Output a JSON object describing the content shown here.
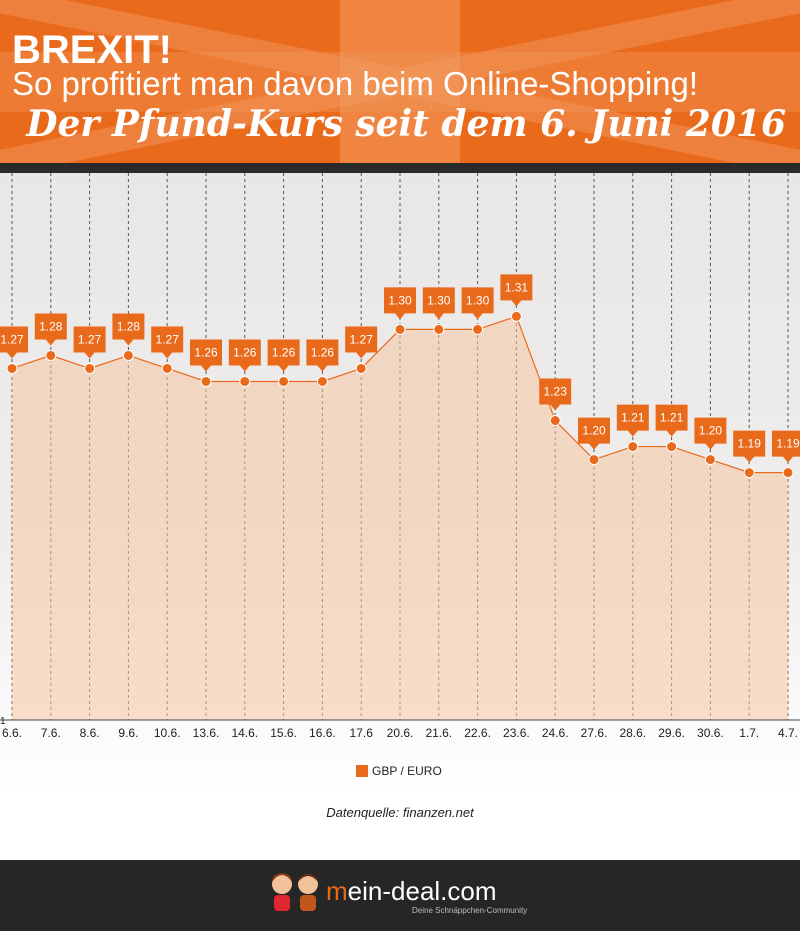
{
  "header": {
    "title": "BREXIT!",
    "subtitle": "So profitiert man davon beim Online-Shopping!",
    "tagline": "Der Pfund-Kurs seit dem 6. Juni 2016"
  },
  "chart_data": {
    "type": "area",
    "categories": [
      "6.6.",
      "7.6.",
      "8.6.",
      "9.6.",
      "10.6.",
      "13.6.",
      "14.6.",
      "15.6.",
      "16.6.",
      "17.6",
      "20.6.",
      "21.6.",
      "22.6.",
      "23.6.",
      "24.6.",
      "27.6.",
      "28.6.",
      "29.6.",
      "30.6.",
      "1.7.",
      "4.7."
    ],
    "series": [
      {
        "name": "GBP / EURO",
        "values": [
          1.27,
          1.28,
          1.27,
          1.28,
          1.27,
          1.26,
          1.26,
          1.26,
          1.26,
          1.27,
          1.3,
          1.3,
          1.3,
          1.31,
          1.23,
          1.2,
          1.21,
          1.21,
          1.2,
          1.19,
          1.19
        ],
        "labels": [
          "1.27",
          "1.28",
          "1.27",
          "1.28",
          "1.27",
          "1.26",
          "1.26",
          "1.26",
          "1.26",
          "1.27",
          "1.30",
          "1.30",
          "1.30",
          "1.31",
          "1.23",
          "1.20",
          "1.21",
          "1.21",
          "1.20",
          "1.19",
          "1.19"
        ]
      }
    ],
    "y_tick_label": "1",
    "ylim": [
      1,
      1.33
    ],
    "grid": "vertical-dashed",
    "legend": "bottom-center",
    "color": "#ea6a1c"
  },
  "source": "Datenquelle: finanzen.net",
  "footer": {
    "brand_accent": "m",
    "brand_rest": "ein-deal.com",
    "slogan": "Deine Schnäppchen-Community"
  }
}
